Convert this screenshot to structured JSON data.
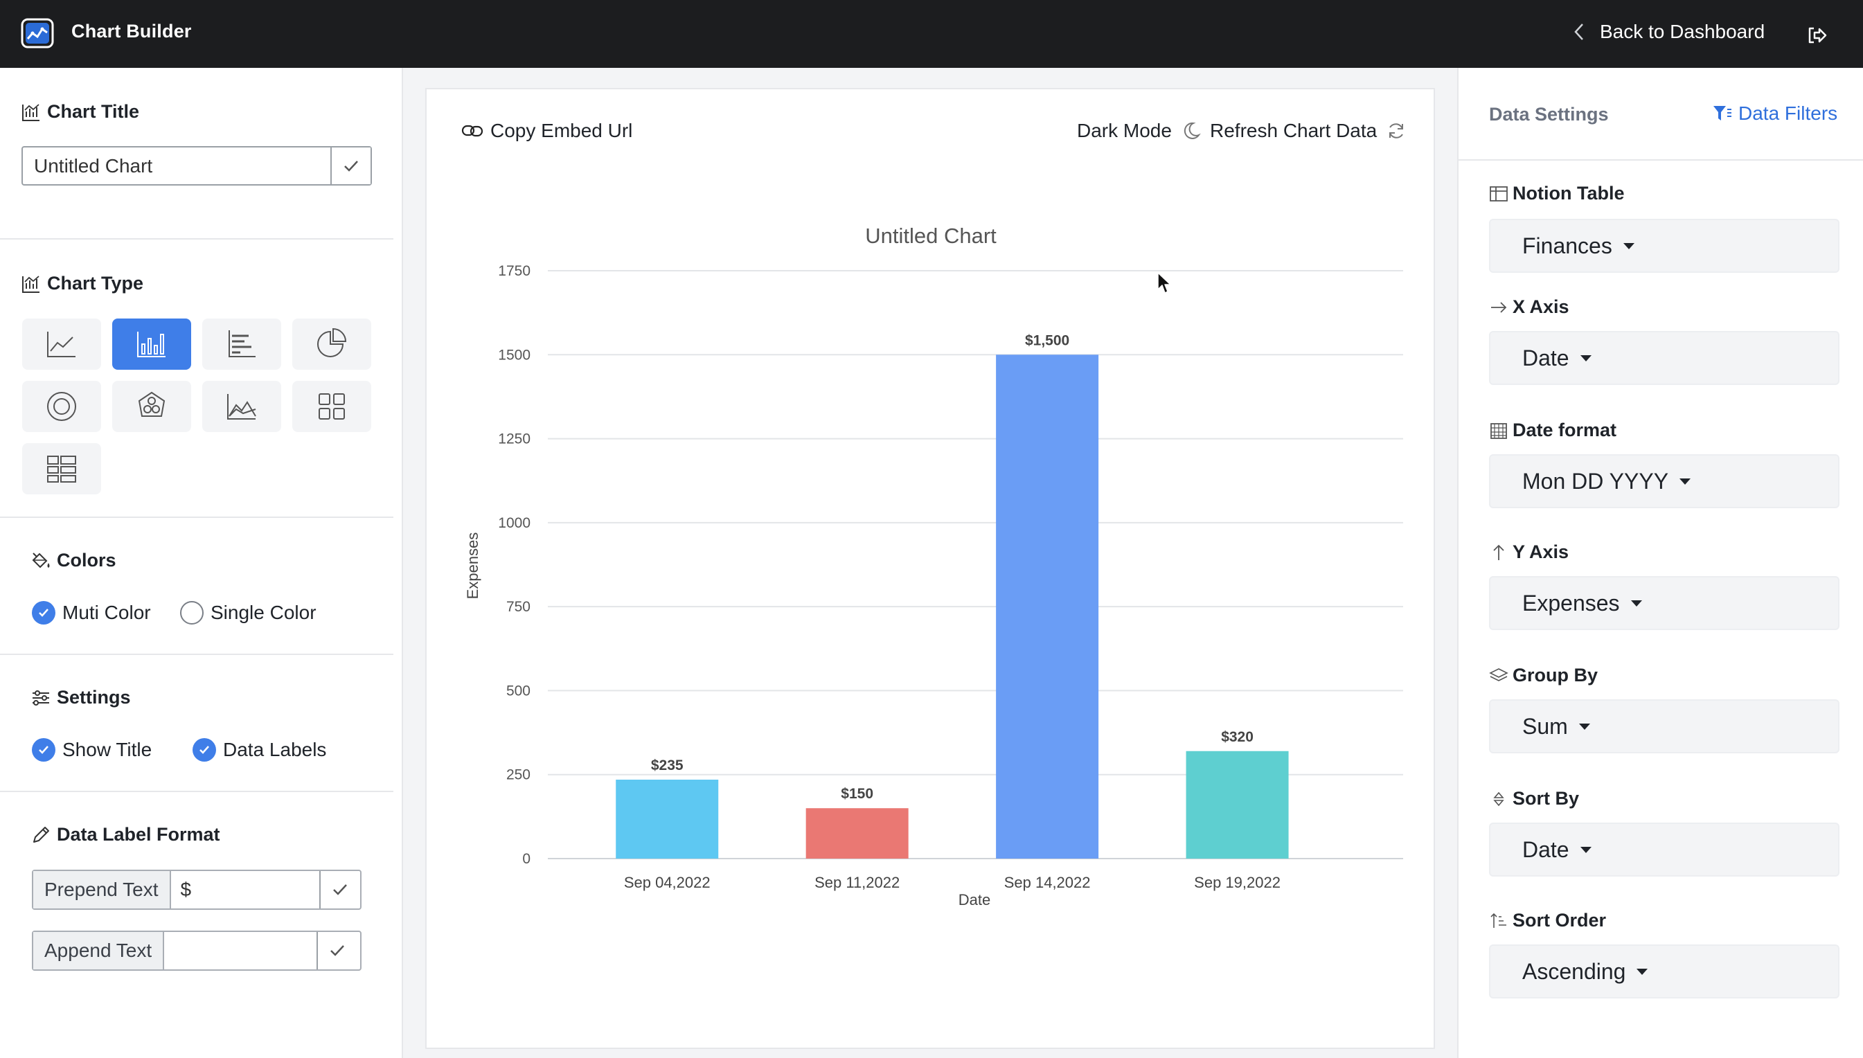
{
  "app": {
    "title": "Chart Builder",
    "back_label": "Back to Dashboard"
  },
  "icons": {
    "logo": "chart-logo-icon",
    "back": "chevron-left-icon",
    "logout": "logout-icon",
    "link": "link-icon",
    "moon": "moon-icon",
    "refresh": "refresh-icon",
    "filter": "filter-icon"
  },
  "left": {
    "chart_title_heading": "Chart Title",
    "chart_title_value": "Untitled Chart",
    "chart_type_heading": "Chart Type",
    "chart_types": [
      "line",
      "bar",
      "horizontal-bar",
      "pie",
      "donut",
      "polar",
      "area",
      "grid",
      "table"
    ],
    "selected_chart_type": "bar",
    "colors_heading": "Colors",
    "color_options": [
      {
        "label": "Muti Color",
        "selected": true
      },
      {
        "label": "Single Color",
        "selected": false
      }
    ],
    "settings_heading": "Settings",
    "settings_options": [
      {
        "label": "Show Title",
        "checked": true
      },
      {
        "label": "Data Labels",
        "checked": true
      }
    ],
    "label_format_heading": "Data Label Format",
    "prepend_label": "Prepend Text",
    "prepend_value": "$",
    "append_label": "Append Text",
    "append_value": ""
  },
  "center": {
    "copy_embed_label": "Copy Embed Url",
    "dark_mode_label": "Dark Mode",
    "refresh_label": "Refresh Chart Data"
  },
  "right": {
    "heading": "Data Settings",
    "filters_label": "Data Filters",
    "fields": [
      {
        "label": "Notion Table",
        "icon": "table-icon",
        "value": "Finances"
      },
      {
        "label": "X Axis",
        "icon": "arrow-right-icon",
        "value": "Date"
      },
      {
        "label": "Date format",
        "icon": "calendar-icon",
        "value": "Mon DD YYYY"
      },
      {
        "label": "Y Axis",
        "icon": "arrow-up-icon",
        "value": "Expenses"
      },
      {
        "label": "Group By",
        "icon": "layers-icon",
        "value": "Sum"
      },
      {
        "label": "Sort By",
        "icon": "sort-icon",
        "value": "Date"
      },
      {
        "label": "Sort Order",
        "icon": "sort-ascending-icon",
        "value": "Ascending"
      }
    ]
  },
  "colors": {
    "accent": "#3f7ee8",
    "topbar": "#1c1d1f",
    "bar_colors": [
      "#5ec8f2",
      "#ea7873",
      "#6a9df5",
      "#5ecfd0"
    ]
  },
  "chart_data": {
    "type": "bar",
    "title": "Untitled Chart",
    "xlabel": "Date",
    "ylabel": "Expenses",
    "categories": [
      "Sep 04,2022",
      "Sep 11,2022",
      "Sep 14,2022",
      "Sep 19,2022"
    ],
    "values": [
      235,
      150,
      1500,
      320
    ],
    "data_labels": [
      "$235",
      "$150",
      "$1,500",
      "$320"
    ],
    "ylim": [
      0,
      1750
    ],
    "yticks": [
      0,
      250,
      500,
      750,
      1000,
      1250,
      1500,
      1750
    ],
    "grid": true,
    "legend": "none"
  }
}
